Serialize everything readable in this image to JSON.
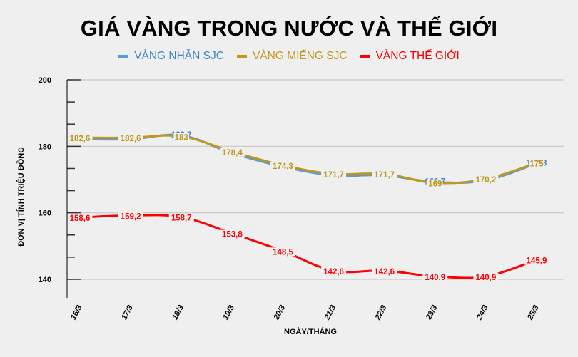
{
  "title": "GIÁ VÀNG TRONG NƯỚC VÀ THẾ GIỚI",
  "legend": [
    {
      "label": "VÀNG NHẪN SJC",
      "color": "#3f86c6"
    },
    {
      "label": "VÀNG MIẾNG SJC",
      "color": "#c0961c"
    },
    {
      "label": "VÀNG THẾ GIỚI",
      "color": "#ff0000"
    }
  ],
  "axes": {
    "ylabel": "ĐƠN VỊ TÍNH TRIỆU ĐỒNG",
    "xlabel": "NGÀY/THÁNG"
  },
  "chart_data": {
    "type": "line",
    "title": "GIÁ VÀNG TRONG NƯỚC VÀ THẾ GIỚI",
    "xlabel": "NGÀY/THÁNG",
    "ylabel": "ĐƠN VỊ TÍNH TRIỆU ĐỒNG",
    "ylim": [
      140,
      200
    ],
    "yticks": [
      140,
      160,
      180,
      200
    ],
    "grid": true,
    "legend_position": "top",
    "categories": [
      "16/3",
      "17/3",
      "18/3",
      "19/3",
      "20/3",
      "21/3",
      "22/3",
      "23/3",
      "24/3",
      "25/3"
    ],
    "series": [
      {
        "name": "VÀNG NHẪN SJC",
        "color": "#5b9bd5",
        "values": [
          182.6,
          182.6,
          183.7,
          178.4,
          174.3,
          171.7,
          171.7,
          169.7,
          170.2,
          175.3
        ],
        "labels": [
          "182,6",
          "182,6",
          "183,7",
          "178,4",
          "174,3",
          "171,7",
          "171,7",
          "169,7",
          "170,2",
          "175,3"
        ]
      },
      {
        "name": "VÀNG MIẾNG SJC",
        "color": "#c0961c",
        "values": [
          182.6,
          182.6,
          183,
          178.4,
          174.3,
          171.7,
          171.7,
          169,
          170.2,
          175
        ],
        "labels": [
          "182,6",
          "182,6",
          "183",
          "178,4",
          "174,3",
          "171,7",
          "171,7",
          "169",
          "170,2",
          "175"
        ]
      },
      {
        "name": "VÀNG THẾ GIỚI",
        "color": "#ff0000",
        "values": [
          158.6,
          159.2,
          158.7,
          153.8,
          148.5,
          142.6,
          142.6,
          140.9,
          140.9,
          145.9
        ],
        "labels": [
          "158,6",
          "159,2",
          "158,7",
          "153,8",
          "148,5",
          "142,6",
          "142,6",
          "140,9",
          "140,9",
          "145,9"
        ]
      }
    ]
  }
}
